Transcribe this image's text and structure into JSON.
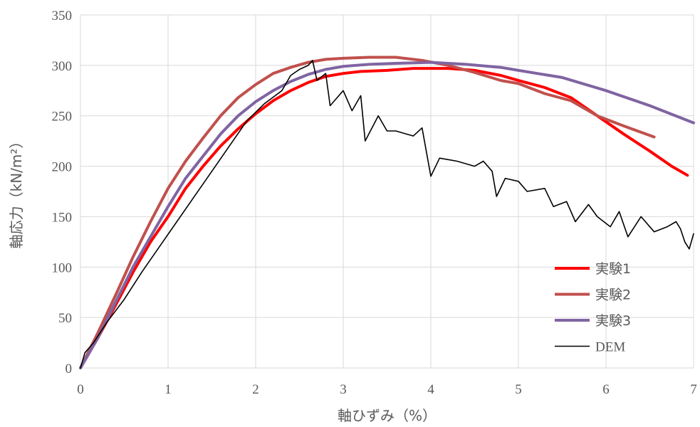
{
  "chart_data": {
    "type": "line",
    "xlabel": "軸ひずみ（%）",
    "ylabel": "軸応力（kN/m²）",
    "xlim": [
      0,
      7
    ],
    "ylim": [
      0,
      350
    ],
    "x_ticks": [
      0,
      1,
      2,
      3,
      4,
      5,
      6,
      7
    ],
    "y_ticks": [
      0,
      50,
      100,
      150,
      200,
      250,
      300,
      350
    ],
    "grid": true,
    "legend_position": "bottom-right",
    "series": [
      {
        "name": "実験1",
        "color": "#ff0000",
        "points": [
          [
            0,
            0
          ],
          [
            0.2,
            30
          ],
          [
            0.4,
            62
          ],
          [
            0.6,
            95
          ],
          [
            0.8,
            125
          ],
          [
            1.0,
            150
          ],
          [
            1.2,
            178
          ],
          [
            1.4,
            200
          ],
          [
            1.6,
            220
          ],
          [
            1.8,
            237
          ],
          [
            2.0,
            252
          ],
          [
            2.2,
            265
          ],
          [
            2.4,
            275
          ],
          [
            2.6,
            283
          ],
          [
            2.8,
            289
          ],
          [
            3.0,
            292
          ],
          [
            3.2,
            294
          ],
          [
            3.5,
            295
          ],
          [
            3.8,
            297
          ],
          [
            4.0,
            297
          ],
          [
            4.2,
            297
          ],
          [
            4.5,
            295
          ],
          [
            4.8,
            290
          ],
          [
            5.0,
            285
          ],
          [
            5.3,
            278
          ],
          [
            5.6,
            268
          ],
          [
            5.9,
            250
          ],
          [
            6.2,
            232
          ],
          [
            6.5,
            215
          ],
          [
            6.75,
            200
          ],
          [
            6.93,
            191
          ]
        ]
      },
      {
        "name": "実験2",
        "color": "#c0504d",
        "points": [
          [
            0,
            0
          ],
          [
            0.2,
            35
          ],
          [
            0.4,
            72
          ],
          [
            0.6,
            110
          ],
          [
            0.8,
            145
          ],
          [
            1.0,
            178
          ],
          [
            1.2,
            205
          ],
          [
            1.4,
            228
          ],
          [
            1.6,
            250
          ],
          [
            1.8,
            268
          ],
          [
            2.0,
            281
          ],
          [
            2.2,
            292
          ],
          [
            2.4,
            298
          ],
          [
            2.6,
            303
          ],
          [
            2.8,
            306
          ],
          [
            3.0,
            307
          ],
          [
            3.3,
            308
          ],
          [
            3.6,
            308
          ],
          [
            3.9,
            305
          ],
          [
            4.2,
            300
          ],
          [
            4.5,
            293
          ],
          [
            4.8,
            285
          ],
          [
            5.0,
            282
          ],
          [
            5.3,
            272
          ],
          [
            5.6,
            265
          ],
          [
            5.9,
            250
          ],
          [
            6.2,
            240
          ],
          [
            6.55,
            229
          ]
        ]
      },
      {
        "name": "実験3",
        "color": "#8064a2",
        "points": [
          [
            0,
            0
          ],
          [
            0.2,
            30
          ],
          [
            0.4,
            65
          ],
          [
            0.6,
            100
          ],
          [
            0.8,
            130
          ],
          [
            1.0,
            160
          ],
          [
            1.2,
            188
          ],
          [
            1.4,
            210
          ],
          [
            1.6,
            232
          ],
          [
            1.8,
            250
          ],
          [
            2.0,
            264
          ],
          [
            2.2,
            275
          ],
          [
            2.4,
            284
          ],
          [
            2.6,
            291
          ],
          [
            2.8,
            296
          ],
          [
            3.0,
            299
          ],
          [
            3.3,
            301
          ],
          [
            3.6,
            302
          ],
          [
            4.0,
            303
          ],
          [
            4.4,
            301
          ],
          [
            4.8,
            298
          ],
          [
            5.0,
            295
          ],
          [
            5.5,
            288
          ],
          [
            6.0,
            275
          ],
          [
            6.5,
            260
          ],
          [
            7.0,
            243
          ]
        ]
      },
      {
        "name": "DEM",
        "color": "#000000",
        "points": [
          [
            0,
            0
          ],
          [
            0.05,
            15
          ],
          [
            0.15,
            25
          ],
          [
            0.3,
            45
          ],
          [
            0.5,
            68
          ],
          [
            0.7,
            95
          ],
          [
            0.9,
            120
          ],
          [
            1.1,
            145
          ],
          [
            1.3,
            170
          ],
          [
            1.5,
            195
          ],
          [
            1.7,
            220
          ],
          [
            1.9,
            245
          ],
          [
            2.1,
            262
          ],
          [
            2.3,
            275
          ],
          [
            2.4,
            290
          ],
          [
            2.5,
            296
          ],
          [
            2.6,
            300
          ],
          [
            2.65,
            305
          ],
          [
            2.7,
            285
          ],
          [
            2.8,
            292
          ],
          [
            2.85,
            260
          ],
          [
            2.9,
            265
          ],
          [
            3.0,
            275
          ],
          [
            3.1,
            255
          ],
          [
            3.2,
            270
          ],
          [
            3.25,
            225
          ],
          [
            3.4,
            250
          ],
          [
            3.5,
            235
          ],
          [
            3.6,
            235
          ],
          [
            3.8,
            230
          ],
          [
            3.9,
            238
          ],
          [
            4.0,
            190
          ],
          [
            4.1,
            208
          ],
          [
            4.3,
            205
          ],
          [
            4.5,
            200
          ],
          [
            4.6,
            205
          ],
          [
            4.7,
            195
          ],
          [
            4.75,
            170
          ],
          [
            4.85,
            188
          ],
          [
            5.0,
            185
          ],
          [
            5.1,
            175
          ],
          [
            5.3,
            178
          ],
          [
            5.4,
            160
          ],
          [
            5.55,
            165
          ],
          [
            5.65,
            145
          ],
          [
            5.8,
            162
          ],
          [
            5.9,
            150
          ],
          [
            6.05,
            140
          ],
          [
            6.15,
            155
          ],
          [
            6.25,
            130
          ],
          [
            6.4,
            150
          ],
          [
            6.55,
            135
          ],
          [
            6.7,
            140
          ],
          [
            6.8,
            145
          ],
          [
            6.85,
            138
          ],
          [
            6.9,
            125
          ],
          [
            6.95,
            118
          ],
          [
            7.0,
            133
          ]
        ]
      }
    ]
  }
}
